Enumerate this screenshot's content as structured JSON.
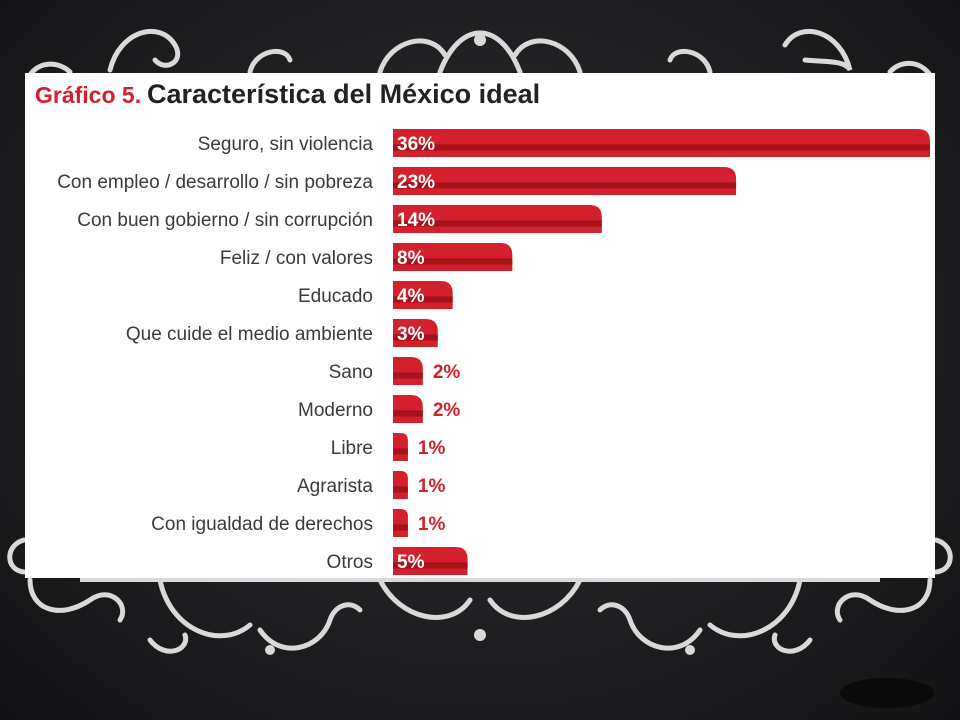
{
  "colors": {
    "bar_red": "#d3202d",
    "bar_red_dark": "#a5121c",
    "background": "#1f1f22",
    "panel": "#ffffff",
    "ornament": "#d9d9d9"
  },
  "chart_data": {
    "type": "bar",
    "orientation": "horizontal",
    "title_prefix": "Gráfico 5.",
    "title": "Característica del México ideal",
    "categories": [
      "Seguro, sin violencia",
      "Con empleo / desarrollo / sin pobreza",
      "Con buen gobierno / sin corrupción",
      "Feliz / con valores",
      "Educado",
      "Que cuide el medio ambiente",
      "Sano",
      "Moderno",
      "Libre",
      "Agrarista",
      "Con igualdad de derechos",
      "Otros"
    ],
    "values": [
      36,
      23,
      14,
      8,
      4,
      3,
      2,
      2,
      1,
      1,
      1,
      5
    ],
    "value_labels": [
      "36%",
      "23%",
      "14%",
      "8%",
      "4%",
      "3%",
      "2%",
      "2%",
      "1%",
      "1%",
      "1%",
      "5%"
    ],
    "unit": "%",
    "grid": false,
    "legend": "none"
  }
}
